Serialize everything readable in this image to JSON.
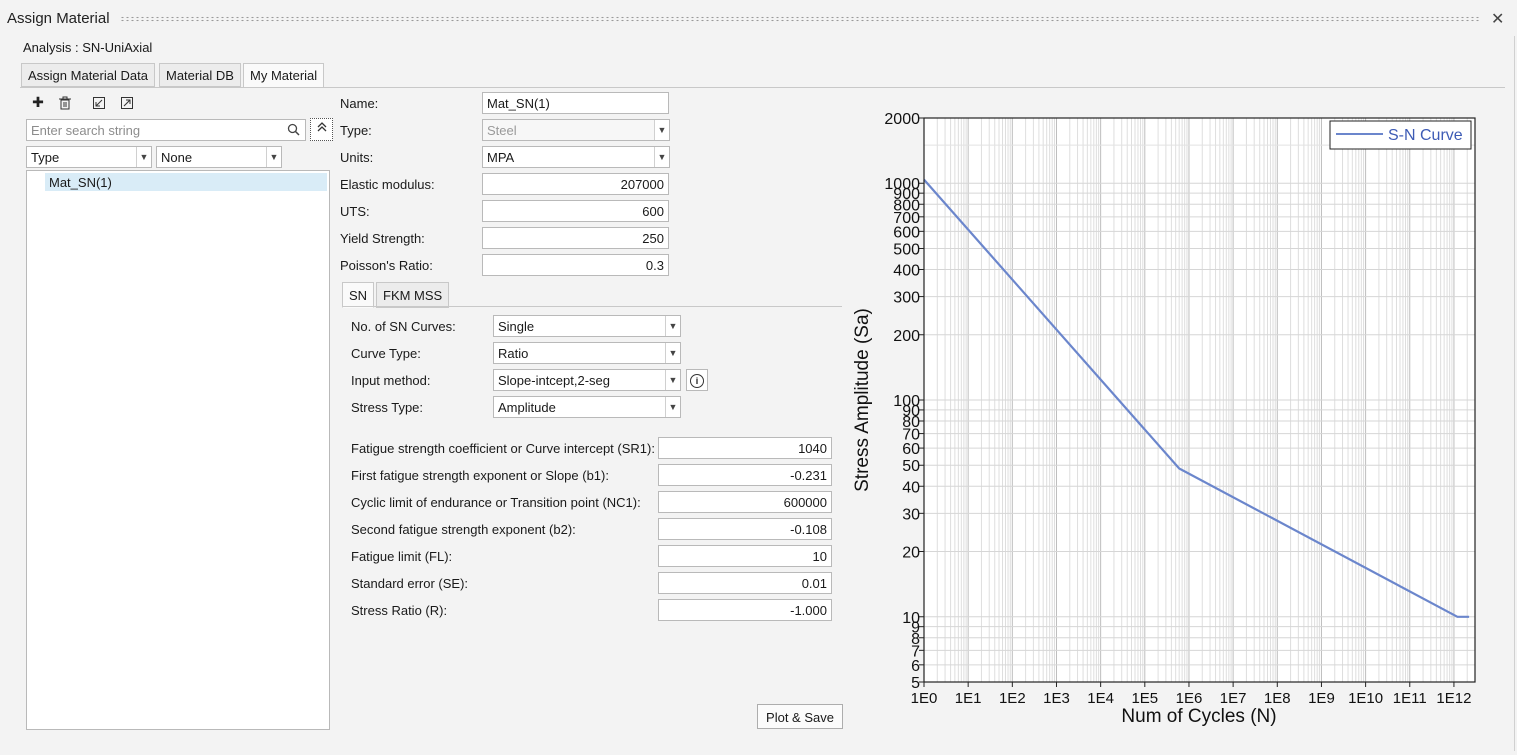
{
  "window": {
    "title": "Assign Material",
    "close_glyph": "✕"
  },
  "analysis_label": "Analysis : SN-UniAxial",
  "tabs": [
    {
      "label": "Assign Material Data",
      "active": false
    },
    {
      "label": "Material DB",
      "active": false
    },
    {
      "label": "My Material",
      "active": true
    }
  ],
  "toolbar": {
    "icons": [
      "add-icon",
      "delete-icon",
      "import-icon",
      "export-icon"
    ],
    "glyphs": [
      "✚",
      "🗑",
      "⬋",
      "⬈"
    ]
  },
  "search": {
    "placeholder": "Enter search string",
    "collapse_glyph": "⌃"
  },
  "filters": {
    "type_value": "Type",
    "none_value": "None"
  },
  "material_list": [
    "Mat_SN(1)"
  ],
  "properties": {
    "name": {
      "label": "Name:",
      "value": "Mat_SN(1)"
    },
    "type": {
      "label": "Type:",
      "value": "Steel"
    },
    "units": {
      "label": "Units:",
      "value": "MPA"
    },
    "elastic_modulus": {
      "label": "Elastic modulus:",
      "value": "207000"
    },
    "uts": {
      "label": "UTS:",
      "value": "600"
    },
    "yield_strength": {
      "label": "Yield Strength:",
      "value": "250"
    },
    "poisson_ratio": {
      "label": "Poisson's Ratio:",
      "value": "0.3"
    }
  },
  "subtabs": [
    {
      "label": "SN",
      "active": true
    },
    {
      "label": "FKM MSS",
      "active": false
    }
  ],
  "sn": {
    "num_curves": {
      "label": "No. of SN Curves:",
      "value": "Single"
    },
    "curve_type": {
      "label": "Curve Type:",
      "value": "Ratio"
    },
    "input_method": {
      "label": "Input method:",
      "value": "Slope-intcept,2-seg"
    },
    "stress_type": {
      "label": "Stress Type:",
      "value": "Amplitude"
    },
    "sr1": {
      "label": "Fatigue strength coefficient or Curve intercept (SR1):",
      "value": "1040"
    },
    "b1": {
      "label": "First fatigue strength exponent or Slope (b1):",
      "value": "-0.231"
    },
    "nc1": {
      "label": "Cyclic limit of endurance or Transition point (NC1):",
      "value": "600000"
    },
    "b2": {
      "label": "Second fatigue strength exponent (b2):",
      "value": "-0.108"
    },
    "fl": {
      "label": "Fatigue limit (FL):",
      "value": "10"
    },
    "se": {
      "label": "Standard error (SE):",
      "value": "0.01"
    },
    "r": {
      "label": "Stress Ratio (R):",
      "value": "-1.000"
    }
  },
  "plot_button": "Plot & Save",
  "chart_data": {
    "type": "line",
    "xlabel": "Num of Cycles (N)",
    "ylabel": "Stress Amplitude (Sa)",
    "x_scale": "log",
    "y_scale": "log",
    "xlim": [
      1,
      3000000000000.0
    ],
    "ylim": [
      5,
      2000
    ],
    "x_ticks": [
      "1E0",
      "1E1",
      "1E2",
      "1E3",
      "1E4",
      "1E5",
      "1E6",
      "1E7",
      "1E8",
      "1E9",
      "1E10",
      "1E11",
      "1E12"
    ],
    "y_ticks": [
      "5",
      "6",
      "7",
      "8",
      "9",
      "10",
      "20",
      "30",
      "40",
      "50",
      "60",
      "70",
      "80",
      "90",
      "100",
      "200",
      "300",
      "400",
      "500",
      "600",
      "700",
      "800",
      "900",
      "1000",
      "2000"
    ],
    "grid": true,
    "legend_position": "top-right",
    "series": [
      {
        "name": "S-N Curve",
        "color": "#6b86cc",
        "x": [
          1,
          600000,
          1200000000000.0,
          2200000000000.0
        ],
        "y": [
          1040,
          48.3,
          10,
          10
        ]
      }
    ]
  }
}
